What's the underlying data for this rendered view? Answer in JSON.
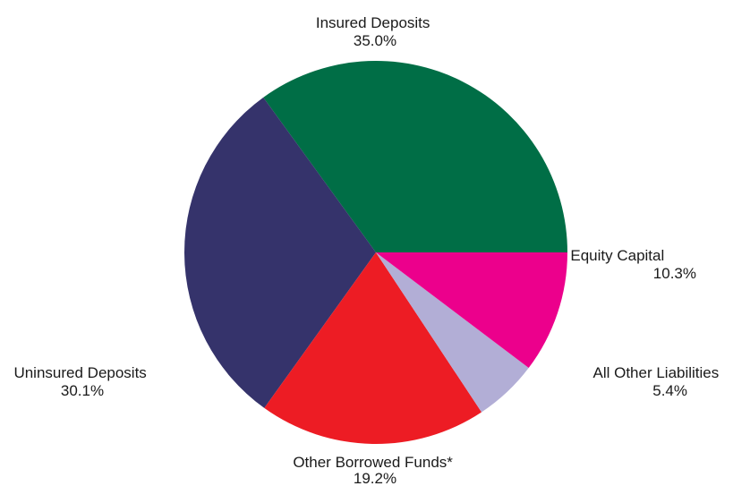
{
  "chart_data": {
    "type": "pie",
    "unit": "%",
    "start_angle_deg": 0,
    "direction": "counterclockwise",
    "slices": [
      {
        "name": "Insured Deposits",
        "value": 35.0,
        "value_label": "35.0%",
        "color": "#006e46"
      },
      {
        "name": "Uninsured Deposits",
        "value": 30.1,
        "value_label": "30.1%",
        "color": "#35336b"
      },
      {
        "name": "Other Borrowed Funds*",
        "value": 19.2,
        "value_label": "19.2%",
        "color": "#ed1c24"
      },
      {
        "name": "All Other Liabilities",
        "value": 5.4,
        "value_label": "5.4%",
        "color": "#b2aed6"
      },
      {
        "name": "Equity Capital",
        "value": 10.3,
        "value_label": "10.3%",
        "color": "#ec008c"
      }
    ]
  }
}
